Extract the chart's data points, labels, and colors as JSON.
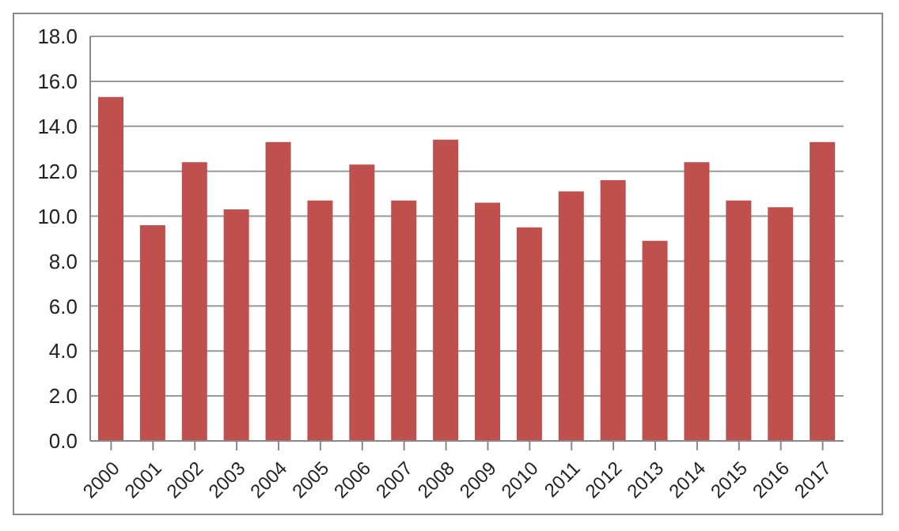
{
  "chart_data": {
    "type": "bar",
    "categories": [
      "2000",
      "2001",
      "2002",
      "2003",
      "2004",
      "2005",
      "2006",
      "2007",
      "2008",
      "2009",
      "2010",
      "2011",
      "2012",
      "2013",
      "2014",
      "2015",
      "2016",
      "2017"
    ],
    "values": [
      15.3,
      9.6,
      12.4,
      10.3,
      13.3,
      10.7,
      12.3,
      10.7,
      13.4,
      10.6,
      9.5,
      11.1,
      11.6,
      8.9,
      12.4,
      10.7,
      10.4,
      13.3
    ],
    "color": "#c0504d",
    "ylim": [
      0,
      18
    ],
    "yticks": [
      {
        "value": 0,
        "label": "0.0"
      },
      {
        "value": 2,
        "label": "2.0"
      },
      {
        "value": 4,
        "label": "4.0"
      },
      {
        "value": 6,
        "label": "6.0"
      },
      {
        "value": 8,
        "label": "8.0"
      },
      {
        "value": 10,
        "label": "10.0"
      },
      {
        "value": 12,
        "label": "12.0"
      },
      {
        "value": 14,
        "label": "14.0"
      },
      {
        "value": 16,
        "label": "16.0"
      },
      {
        "value": 18,
        "label": "18.0"
      }
    ],
    "grid": "y"
  }
}
